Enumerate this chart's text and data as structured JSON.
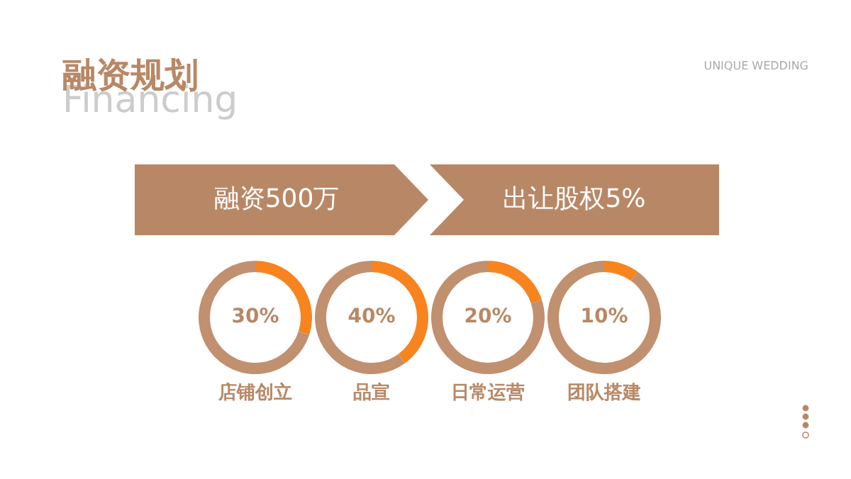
{
  "chart_data": [
    {
      "type": "other",
      "title": "融资规划",
      "subtitle": "Financing",
      "annotations": [
        "UNIQUE WEDDING",
        "融资500万",
        "出让股权5%"
      ]
    },
    {
      "type": "donut",
      "title": "店铺创立",
      "categories": [
        null,
        null
      ],
      "values": [
        30,
        70
      ],
      "colors": [
        "#f7841f",
        "#c1906f"
      ],
      "value_labels": [
        "30%",
        null
      ]
    },
    {
      "type": "donut",
      "title": "品宣",
      "categories": [
        null,
        null
      ],
      "values": [
        40,
        60
      ],
      "colors": [
        "#f7841f",
        "#c1906f"
      ],
      "value_labels": [
        "40%",
        null
      ]
    },
    {
      "type": "donut",
      "title": "日常运营",
      "categories": [
        null,
        null
      ],
      "values": [
        20,
        80
      ],
      "colors": [
        "#f7841f",
        "#c1906f"
      ],
      "value_labels": [
        "20%",
        null
      ]
    },
    {
      "type": "donut",
      "title": "团队搭建",
      "categories": [
        null,
        null
      ],
      "values": [
        10,
        90
      ],
      "colors": [
        "#f7841f",
        "#c1906f"
      ],
      "value_labels": [
        "10%",
        null
      ]
    }
  ]
}
